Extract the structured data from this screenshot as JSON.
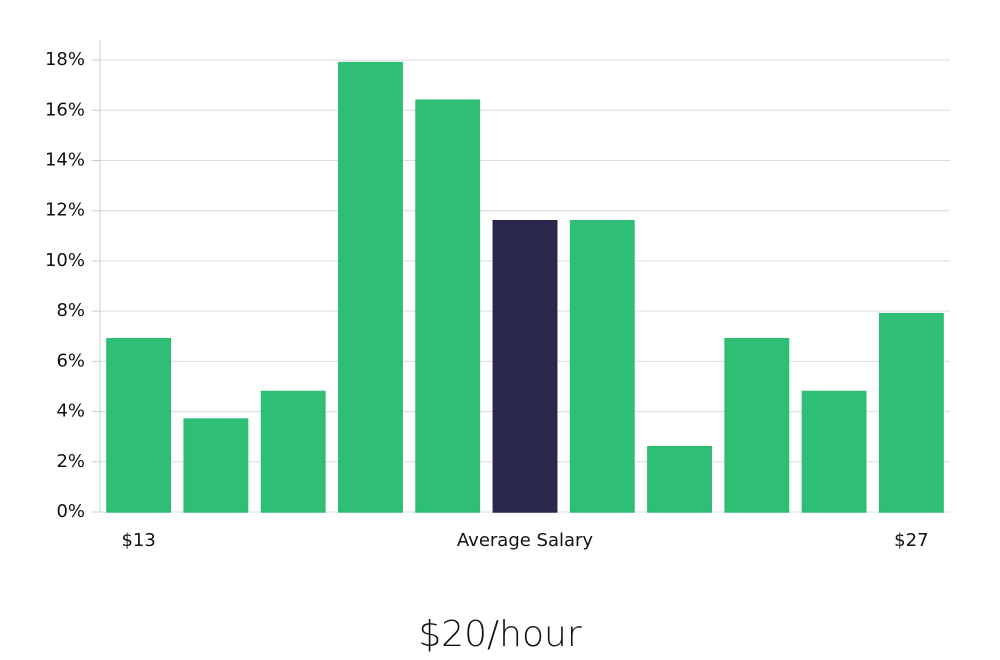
{
  "chart_data": {
    "type": "bar",
    "categories": [
      "$13",
      null,
      null,
      null,
      null,
      "Average Salary",
      null,
      null,
      null,
      null,
      "$27"
    ],
    "values": [
      6.9,
      3.7,
      4.8,
      17.9,
      16.4,
      11.6,
      11.6,
      2.6,
      6.9,
      4.8,
      7.9
    ],
    "colors": [
      "#2bbd73",
      "#2bbd73",
      "#2bbd73",
      "#2bbd73",
      "#2bbd73",
      "#27244a",
      "#2bbd73",
      "#2bbd73",
      "#2bbd73",
      "#2bbd73",
      "#2bbd73"
    ],
    "ylim": [
      0,
      18.8
    ],
    "yticks": [
      {
        "value": 0,
        "label": "0%"
      },
      {
        "value": 2,
        "label": "2%"
      },
      {
        "value": 4,
        "label": "4%"
      },
      {
        "value": 6,
        "label": "6%"
      },
      {
        "value": 8,
        "label": "8%"
      },
      {
        "value": 10,
        "label": "10%"
      },
      {
        "value": 12,
        "label": "12%"
      },
      {
        "value": 14,
        "label": "14%"
      },
      {
        "value": 16,
        "label": "16%"
      },
      {
        "value": 18,
        "label": "18%"
      }
    ],
    "grid": true,
    "caption": "$20/hour"
  }
}
